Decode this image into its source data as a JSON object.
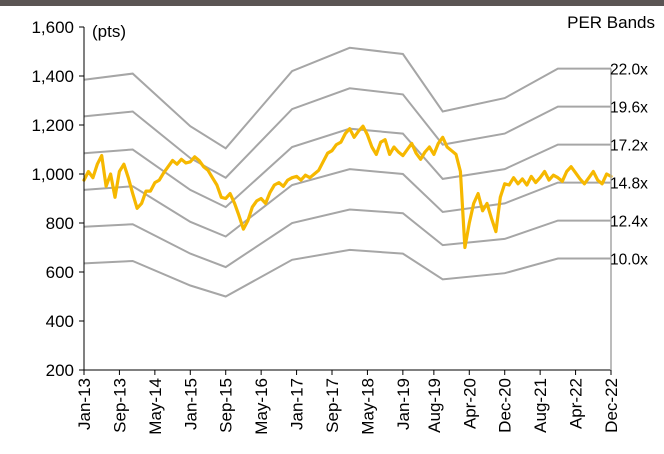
{
  "chart_data": {
    "type": "line",
    "title": "",
    "unit_label": "(pts)",
    "legend_title": "PER Bands",
    "xlabel": "",
    "ylabel": "",
    "ylim": [
      200,
      1600
    ],
    "yticks": [
      200,
      400,
      600,
      800,
      1000,
      1200,
      1400,
      1600
    ],
    "ytick_labels": [
      "200",
      "400",
      "600",
      "800",
      "1,000",
      "1,200",
      "1,400",
      "1,600"
    ],
    "xrange": [
      "2013-01",
      "2022-12"
    ],
    "xticks": [
      "Jan-13",
      "Sep-13",
      "May-14",
      "Jan-15",
      "Sep-15",
      "May-16",
      "Jan-17",
      "Sep-17",
      "May-18",
      "Jan-19",
      "Aug-19",
      "Apr-20",
      "Dec-20",
      "Aug-21",
      "Apr-22",
      "Dec-22"
    ],
    "xtick_dates": [
      "2013-01",
      "2013-09",
      "2014-05",
      "2015-01",
      "2015-09",
      "2016-05",
      "2017-01",
      "2017-09",
      "2018-05",
      "2019-01",
      "2019-08",
      "2020-04",
      "2020-12",
      "2021-08",
      "2022-04",
      "2022-12"
    ],
    "grid": false,
    "band_colors": "#a6a6a6",
    "index_color": "#f6b800",
    "bands": [
      {
        "label": "22.0x",
        "points": [
          [
            "2013-01",
            1385
          ],
          [
            "2013-12",
            1410
          ],
          [
            "2015-01",
            1195
          ],
          [
            "2015-09",
            1105
          ],
          [
            "2016-12",
            1420
          ],
          [
            "2018-01",
            1515
          ],
          [
            "2019-01",
            1490
          ],
          [
            "2019-10",
            1255
          ],
          [
            "2020-12",
            1310
          ],
          [
            "2021-12",
            1430
          ],
          [
            "2022-12",
            1430
          ]
        ]
      },
      {
        "label": "19.6x",
        "points": [
          [
            "2013-01",
            1235
          ],
          [
            "2013-12",
            1255
          ],
          [
            "2015-01",
            1065
          ],
          [
            "2015-09",
            985
          ],
          [
            "2016-12",
            1265
          ],
          [
            "2018-01",
            1350
          ],
          [
            "2019-01",
            1325
          ],
          [
            "2019-10",
            1120
          ],
          [
            "2020-12",
            1165
          ],
          [
            "2021-12",
            1275
          ],
          [
            "2022-12",
            1275
          ]
        ]
      },
      {
        "label": "17.2x",
        "points": [
          [
            "2013-01",
            1085
          ],
          [
            "2013-12",
            1100
          ],
          [
            "2015-01",
            935
          ],
          [
            "2015-09",
            865
          ],
          [
            "2016-12",
            1110
          ],
          [
            "2018-01",
            1185
          ],
          [
            "2019-01",
            1165
          ],
          [
            "2019-10",
            980
          ],
          [
            "2020-12",
            1020
          ],
          [
            "2021-12",
            1120
          ],
          [
            "2022-12",
            1120
          ]
        ]
      },
      {
        "label": "14.8x",
        "points": [
          [
            "2013-01",
            935
          ],
          [
            "2013-12",
            950
          ],
          [
            "2015-01",
            805
          ],
          [
            "2015-09",
            745
          ],
          [
            "2016-12",
            955
          ],
          [
            "2018-01",
            1020
          ],
          [
            "2019-01",
            1000
          ],
          [
            "2019-10",
            845
          ],
          [
            "2020-12",
            880
          ],
          [
            "2021-12",
            965
          ],
          [
            "2022-12",
            965
          ]
        ]
      },
      {
        "label": "12.4x",
        "points": [
          [
            "2013-01",
            785
          ],
          [
            "2013-12",
            795
          ],
          [
            "2015-01",
            675
          ],
          [
            "2015-09",
            620
          ],
          [
            "2016-12",
            800
          ],
          [
            "2018-01",
            855
          ],
          [
            "2019-01",
            840
          ],
          [
            "2019-10",
            710
          ],
          [
            "2020-12",
            735
          ],
          [
            "2021-12",
            810
          ],
          [
            "2022-12",
            810
          ]
        ]
      },
      {
        "label": "10.0x",
        "points": [
          [
            "2013-01",
            635
          ],
          [
            "2013-12",
            645
          ],
          [
            "2015-01",
            545
          ],
          [
            "2015-09",
            500
          ],
          [
            "2016-12",
            650
          ],
          [
            "2018-01",
            690
          ],
          [
            "2019-01",
            675
          ],
          [
            "2019-10",
            570
          ],
          [
            "2020-12",
            595
          ],
          [
            "2021-12",
            655
          ],
          [
            "2022-12",
            655
          ]
        ]
      }
    ],
    "series": [
      {
        "points": [
          [
            "2013-01",
            975
          ],
          [
            "2013-02",
            1010
          ],
          [
            "2013-03",
            985
          ],
          [
            "2013-04",
            1040
          ],
          [
            "2013-05",
            1075
          ],
          [
            "2013-06",
            950
          ],
          [
            "2013-07",
            1000
          ],
          [
            "2013-08",
            905
          ],
          [
            "2013-09",
            1010
          ],
          [
            "2013-10",
            1040
          ],
          [
            "2013-11",
            985
          ],
          [
            "2013-12",
            920
          ],
          [
            "2014-01",
            860
          ],
          [
            "2014-02",
            880
          ],
          [
            "2014-03",
            930
          ],
          [
            "2014-04",
            930
          ],
          [
            "2014-05",
            965
          ],
          [
            "2014-06",
            975
          ],
          [
            "2014-07",
            1005
          ],
          [
            "2014-08",
            1030
          ],
          [
            "2014-09",
            1055
          ],
          [
            "2014-10",
            1040
          ],
          [
            "2014-11",
            1060
          ],
          [
            "2014-12",
            1045
          ],
          [
            "2015-01",
            1050
          ],
          [
            "2015-02",
            1070
          ],
          [
            "2015-03",
            1055
          ],
          [
            "2015-04",
            1030
          ],
          [
            "2015-05",
            1015
          ],
          [
            "2015-06",
            985
          ],
          [
            "2015-07",
            955
          ],
          [
            "2015-08",
            905
          ],
          [
            "2015-09",
            900
          ],
          [
            "2015-10",
            920
          ],
          [
            "2015-11",
            880
          ],
          [
            "2015-12",
            830
          ],
          [
            "2016-01",
            775
          ],
          [
            "2016-02",
            810
          ],
          [
            "2016-03",
            865
          ],
          [
            "2016-04",
            890
          ],
          [
            "2016-05",
            900
          ],
          [
            "2016-06",
            880
          ],
          [
            "2016-07",
            925
          ],
          [
            "2016-08",
            955
          ],
          [
            "2016-09",
            965
          ],
          [
            "2016-10",
            950
          ],
          [
            "2016-11",
            975
          ],
          [
            "2016-12",
            985
          ],
          [
            "2017-01",
            990
          ],
          [
            "2017-02",
            975
          ],
          [
            "2017-03",
            995
          ],
          [
            "2017-04",
            985
          ],
          [
            "2017-05",
            1000
          ],
          [
            "2017-06",
            1015
          ],
          [
            "2017-07",
            1050
          ],
          [
            "2017-08",
            1085
          ],
          [
            "2017-09",
            1095
          ],
          [
            "2017-10",
            1120
          ],
          [
            "2017-11",
            1130
          ],
          [
            "2017-12",
            1165
          ],
          [
            "2018-01",
            1185
          ],
          [
            "2018-02",
            1150
          ],
          [
            "2018-03",
            1175
          ],
          [
            "2018-04",
            1195
          ],
          [
            "2018-05",
            1160
          ],
          [
            "2018-06",
            1110
          ],
          [
            "2018-07",
            1080
          ],
          [
            "2018-08",
            1130
          ],
          [
            "2018-09",
            1140
          ],
          [
            "2018-10",
            1080
          ],
          [
            "2018-11",
            1110
          ],
          [
            "2018-12",
            1090
          ],
          [
            "2019-01",
            1075
          ],
          [
            "2019-02",
            1100
          ],
          [
            "2019-03",
            1125
          ],
          [
            "2019-04",
            1085
          ],
          [
            "2019-05",
            1060
          ],
          [
            "2019-06",
            1090
          ],
          [
            "2019-07",
            1110
          ],
          [
            "2019-08",
            1080
          ],
          [
            "2019-09",
            1125
          ],
          [
            "2019-10",
            1150
          ],
          [
            "2019-11",
            1110
          ],
          [
            "2019-12",
            1095
          ],
          [
            "2020-01",
            1080
          ],
          [
            "2020-02",
            1010
          ],
          [
            "2020-03",
            700
          ],
          [
            "2020-04",
            800
          ],
          [
            "2020-05",
            880
          ],
          [
            "2020-06",
            920
          ],
          [
            "2020-07",
            850
          ],
          [
            "2020-08",
            880
          ],
          [
            "2020-09",
            820
          ],
          [
            "2020-10",
            765
          ],
          [
            "2020-11",
            905
          ],
          [
            "2020-12",
            960
          ],
          [
            "2021-01",
            955
          ],
          [
            "2021-02",
            985
          ],
          [
            "2021-03",
            960
          ],
          [
            "2021-04",
            980
          ],
          [
            "2021-05",
            955
          ],
          [
            "2021-06",
            990
          ],
          [
            "2021-07",
            965
          ],
          [
            "2021-08",
            985
          ],
          [
            "2021-09",
            1010
          ],
          [
            "2021-10",
            975
          ],
          [
            "2021-11",
            995
          ],
          [
            "2021-12",
            985
          ],
          [
            "2022-01",
            970
          ],
          [
            "2022-02",
            1010
          ],
          [
            "2022-03",
            1030
          ],
          [
            "2022-04",
            1005
          ],
          [
            "2022-05",
            980
          ],
          [
            "2022-06",
            960
          ],
          [
            "2022-07",
            985
          ],
          [
            "2022-08",
            1010
          ],
          [
            "2022-09",
            975
          ],
          [
            "2022-10",
            960
          ],
          [
            "2022-11",
            1000
          ],
          [
            "2022-12",
            990
          ]
        ]
      }
    ]
  }
}
